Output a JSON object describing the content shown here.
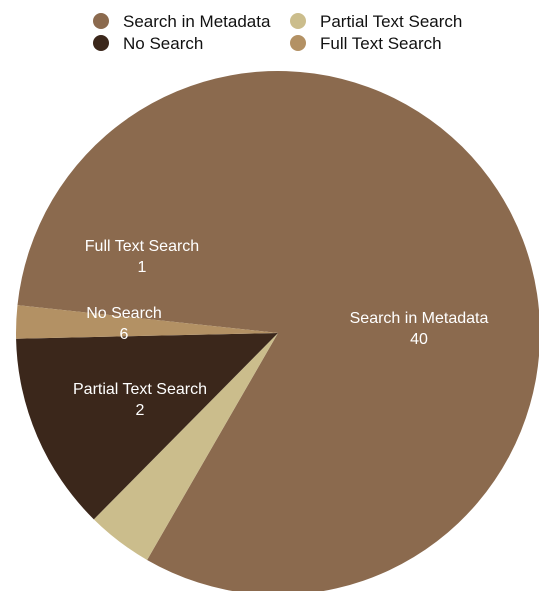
{
  "chart_data": {
    "type": "pie",
    "title": "",
    "legend_position": "top",
    "slices": [
      {
        "label": "Search in Metadata",
        "value": 40,
        "color": "#8b6a4e"
      },
      {
        "label": "Partial Text Search",
        "value": 2,
        "color": "#cbbd8c"
      },
      {
        "label": "No Search",
        "value": 6,
        "color": "#3b271b"
      },
      {
        "label": "Full Text Search",
        "value": 1,
        "color": "#b39164"
      }
    ],
    "legend": [
      {
        "label": "Search in Metadata",
        "color": "#8b6a4e"
      },
      {
        "label": "Partial Text Search",
        "color": "#cbbd8c"
      },
      {
        "label": "No Search",
        "color": "#3b271b"
      },
      {
        "label": "Full Text Search",
        "color": "#b39164"
      }
    ]
  }
}
